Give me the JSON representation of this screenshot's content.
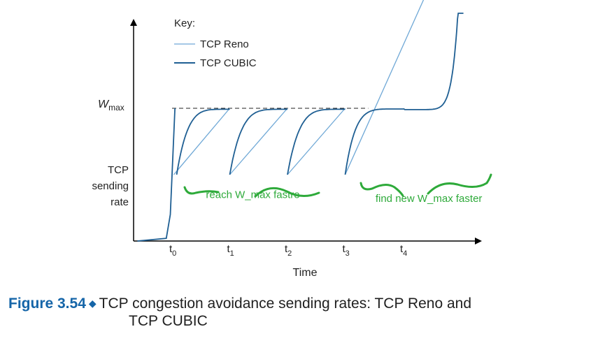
{
  "chart_data": {
    "type": "line",
    "title": "",
    "xlabel": "Time",
    "ylabel": "TCP sending rate",
    "ylabel_lines": [
      "TCP",
      "sending",
      "rate"
    ],
    "x_ticks": [
      {
        "base": "t",
        "sub": "0",
        "x": 0
      },
      {
        "base": "t",
        "sub": "1",
        "x": 1
      },
      {
        "base": "t",
        "sub": "2",
        "x": 2
      },
      {
        "base": "t",
        "sub": "3",
        "x": 3
      },
      {
        "base": "t",
        "sub": "4",
        "x": 4
      }
    ],
    "y_marker": {
      "base": "W",
      "sub": "max",
      "value": 1.0,
      "style": "dashed",
      "x_from": 0,
      "x_to": 3.4
    },
    "xlim": [
      -0.6,
      5.2
    ],
    "ylim": [
      0,
      2.75
    ],
    "legend": {
      "title": "Key:",
      "position": "top-left",
      "entries": [
        {
          "name": "TCP Reno",
          "color": "#6fa8d6"
        },
        {
          "name": "TCP CUBIC",
          "color": "#1f5f93"
        }
      ]
    },
    "series": [
      {
        "name": "TCP Reno",
        "color": "#6fa8d6",
        "segments": [
          [
            [
              0.03,
              0.5
            ],
            [
              1.0,
              1.0
            ]
          ],
          [
            [
              1.0,
              0.5
            ],
            [
              2.0,
              1.0
            ]
          ],
          [
            [
              2.0,
              0.5
            ],
            [
              3.0,
              1.0
            ]
          ],
          [
            [
              3.0,
              0.5
            ],
            [
              5.32,
              2.75
            ]
          ]
        ]
      },
      {
        "name": "TCP CUBIC",
        "color": "#1f5f93",
        "startup": [
          [
            -0.6,
            0.0
          ],
          [
            -0.1,
            0.02
          ],
          [
            -0.03,
            0.2
          ],
          [
            0.02,
            0.7
          ],
          [
            0.05,
            1.0
          ]
        ],
        "concave_cycles": [
          {
            "x_start": 0.08,
            "x_end": 1.0,
            "y_start": 0.5,
            "y_end": 1.0
          },
          {
            "x_start": 1.0,
            "x_end": 2.0,
            "y_start": 0.5,
            "y_end": 1.0
          },
          {
            "x_start": 2.0,
            "x_end": 3.0,
            "y_start": 0.5,
            "y_end": 1.0
          }
        ],
        "cubic_tail": {
          "x_start": 3.0,
          "x_mid": 4.02,
          "x_end": 5.05,
          "y_start": 0.5,
          "y_mid": 1.0,
          "y_end": 2.75
        }
      }
    ],
    "annotations": [
      {
        "text": "reach W_max fastre",
        "color": "#2eaa3a",
        "x": 1.4,
        "y": 0.35
      },
      {
        "text": "find new W_max faster",
        "color": "#2eaa3a",
        "x": 4.45,
        "y": 0.32
      }
    ]
  },
  "caption": {
    "figure_number": "Figure 3.54",
    "text_line1": "TCP congestion avoidance sending rates: TCP Reno and",
    "text_line2": "TCP CUBIC"
  }
}
